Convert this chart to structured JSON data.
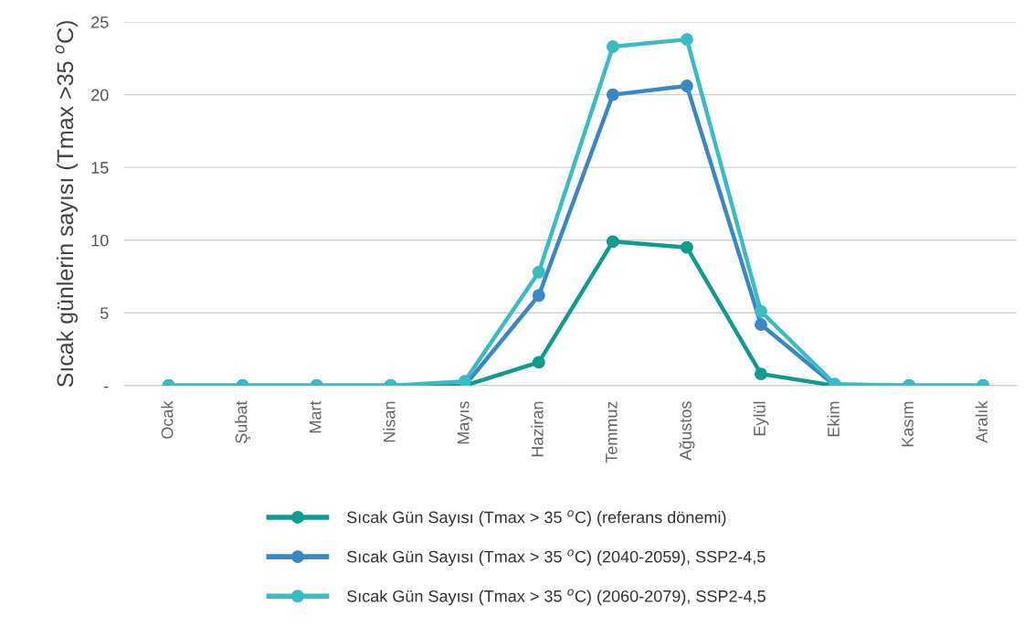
{
  "chart_data": {
    "type": "line",
    "ylabel": "Sıcak günlerin sayısı (Tmax >35 $^{o}$C)",
    "categories": [
      "Ocak",
      "Şubat",
      "Mart",
      "Nisan",
      "Mayıs",
      "Haziran",
      "Temmuz",
      "Ağustos",
      "Eylül",
      "Ekim",
      "Kasım",
      "Aralık"
    ],
    "series": [
      {
        "name": "Sıcak Gün Sayısı (Tmax > 35 $^{o}$C) (referans dönemi)",
        "color": "#0f9b8e",
        "values": [
          0,
          0,
          0,
          0,
          0,
          1.6,
          9.9,
          9.5,
          0.8,
          0,
          0,
          0
        ]
      },
      {
        "name": "Sıcak Gün Sayısı (Tmax > 35 $^{o}$C) (2040-2059), SSP2-4,5",
        "color": "#3a87c8",
        "values": [
          0,
          0,
          0,
          0,
          0,
          6.2,
          20.0,
          20.6,
          4.2,
          0,
          0,
          0
        ]
      },
      {
        "name": "Sıcak Gün Sayısı (Tmax > 35 $^{o}$C) (2060-2079), SSP2-4,5",
        "color": "#3bbcc4",
        "values": [
          0,
          0,
          0,
          0,
          0.3,
          7.8,
          23.3,
          23.8,
          5.1,
          0.1,
          0,
          0
        ]
      }
    ],
    "ylim": [
      0,
      25
    ],
    "yticks": [
      {
        "value": 0,
        "label": "-"
      },
      5,
      10,
      15,
      20,
      25
    ],
    "grid": "y",
    "legend": "bottom",
    "marker": "circle",
    "line_style": "solid"
  }
}
